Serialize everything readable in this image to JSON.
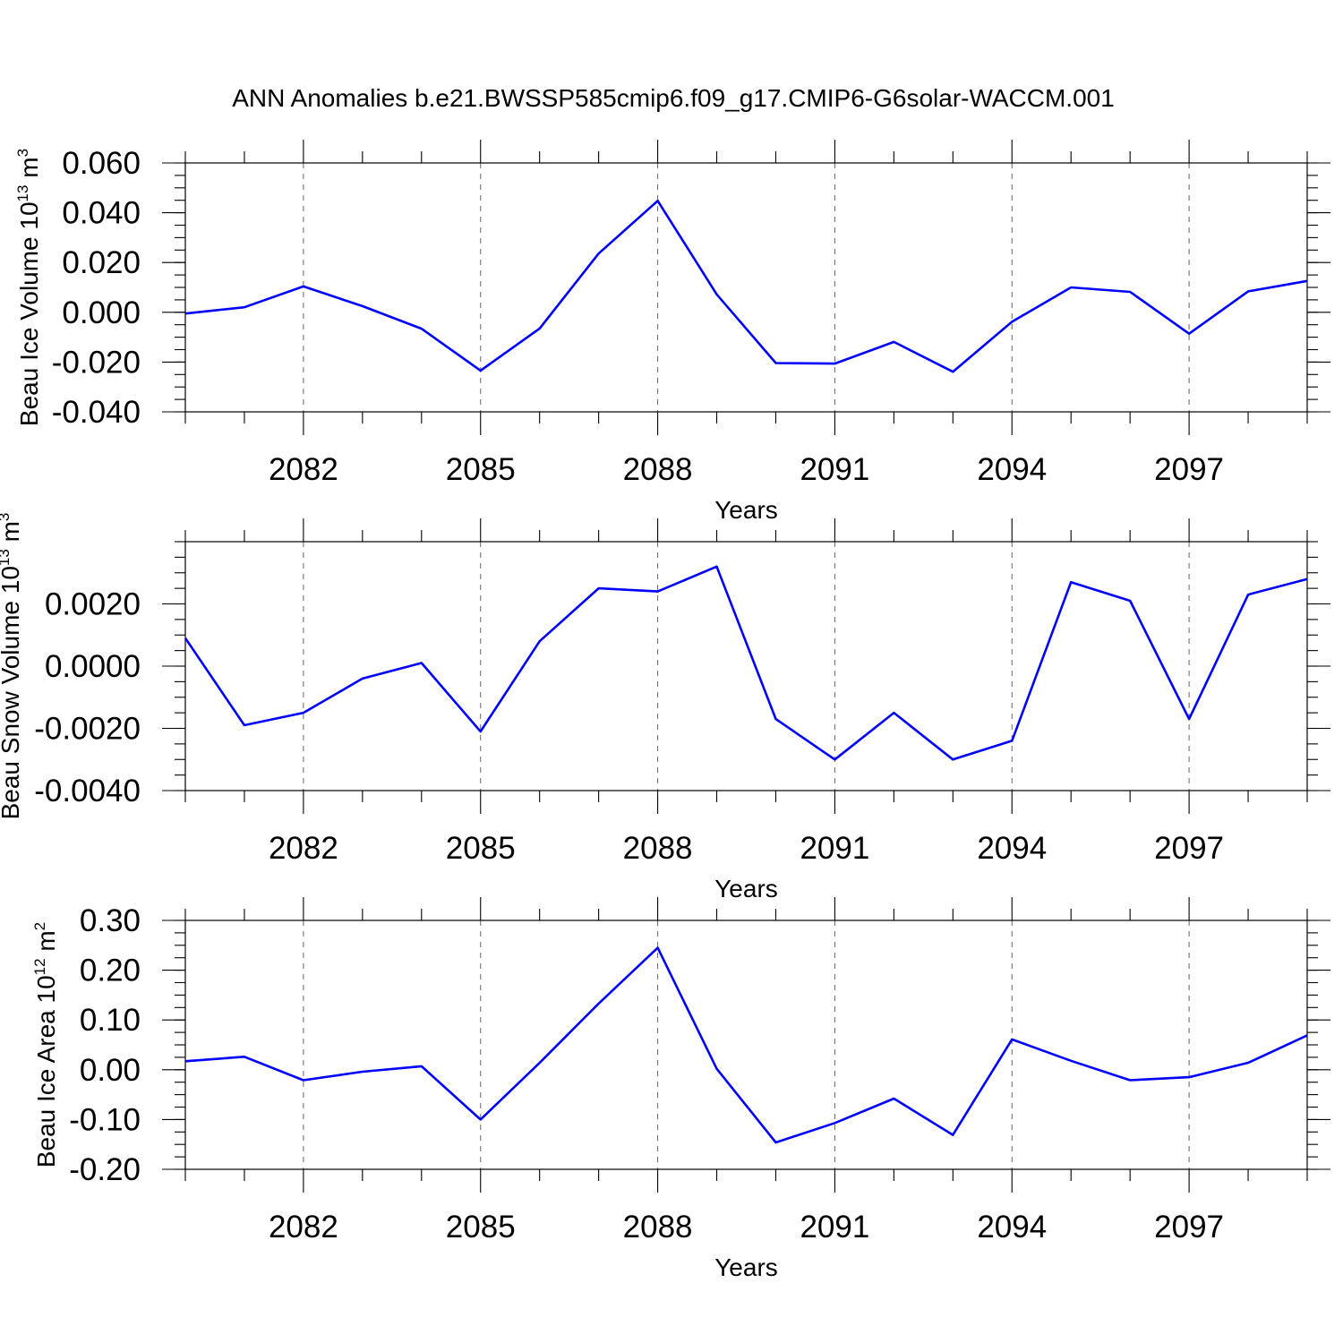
{
  "title": "ANN Anomalies b.e21.BWSSP585cmip6.f09_g17.CMIP6-G6solar-WACCM.001",
  "line_color": "#0000ff",
  "chart_data": [
    {
      "type": "line",
      "ylabel": {
        "main": "Beau Ice Volume 10",
        "sup": "13",
        "unit": " m",
        "unit_sup": "3"
      },
      "xlabel": "Years",
      "x_tick_labels": [
        "2082",
        "2085",
        "2088",
        "2091",
        "2094",
        "2097"
      ],
      "x_tick_values": [
        2082,
        2085,
        2088,
        2091,
        2094,
        2097
      ],
      "xlim": [
        2080,
        2099
      ],
      "ylim": [
        -0.04,
        0.06
      ],
      "y_tick_values": [
        -0.04,
        -0.02,
        0.0,
        0.02,
        0.04,
        0.06
      ],
      "y_tick_labels": [
        "-0.040",
        "-0.020",
        "0.000",
        "0.020",
        "0.040",
        "0.060"
      ],
      "y_minor_step": 0.005,
      "x": [
        2080,
        2081,
        2082,
        2083,
        2084,
        2085,
        2086,
        2087,
        2088,
        2089,
        2090,
        2091,
        2092,
        2093,
        2094,
        2095,
        2096,
        2097,
        2098,
        2099
      ],
      "y": [
        -0.0005,
        0.002,
        0.0104,
        0.0025,
        -0.0066,
        -0.0234,
        -0.0065,
        0.0236,
        0.0448,
        0.0072,
        -0.0204,
        -0.0206,
        -0.0119,
        -0.0239,
        -0.0038,
        0.01,
        0.0082,
        -0.0086,
        0.0084,
        0.0126
      ]
    },
    {
      "type": "line",
      "ylabel": {
        "main": "Beau Snow Volume 10",
        "sup": "13",
        "unit": " m",
        "unit_sup": "3"
      },
      "xlabel": "Years",
      "x_tick_labels": [
        "2082",
        "2085",
        "2088",
        "2091",
        "2094",
        "2097"
      ],
      "x_tick_values": [
        2082,
        2085,
        2088,
        2091,
        2094,
        2097
      ],
      "xlim": [
        2080,
        2099
      ],
      "ylim": [
        -0.004,
        0.004
      ],
      "y_tick_values": [
        -0.004,
        -0.002,
        0.0,
        0.002
      ],
      "y_tick_labels": [
        "-0.0040",
        "-0.0020",
        "0.0000",
        "0.0020"
      ],
      "y_minor_step": 0.0005,
      "x": [
        2080,
        2081,
        2082,
        2083,
        2084,
        2085,
        2086,
        2087,
        2088,
        2089,
        2090,
        2091,
        2092,
        2093,
        2094,
        2095,
        2096,
        2097,
        2098,
        2099
      ],
      "y": [
        0.0009,
        -0.0019,
        -0.0015,
        -0.0004,
        0.0001,
        -0.0021,
        0.0008,
        0.0025,
        0.0024,
        0.0032,
        -0.0017,
        -0.003,
        -0.0015,
        -0.003,
        -0.0024,
        0.0027,
        0.0021,
        -0.0017,
        0.0023,
        0.0028
      ]
    },
    {
      "type": "line",
      "ylabel": {
        "main": "Beau Ice Area 10",
        "sup": "12",
        "unit": " m",
        "unit_sup": "2"
      },
      "xlabel": "Years",
      "x_tick_labels": [
        "2082",
        "2085",
        "2088",
        "2091",
        "2094",
        "2097"
      ],
      "x_tick_values": [
        2082,
        2085,
        2088,
        2091,
        2094,
        2097
      ],
      "xlim": [
        2080,
        2099
      ],
      "ylim": [
        -0.2,
        0.3
      ],
      "y_tick_values": [
        -0.2,
        -0.1,
        0.0,
        0.1,
        0.2,
        0.3
      ],
      "y_tick_labels": [
        "-0.20",
        "-0.10",
        "0.00",
        "0.10",
        "0.20",
        "0.30"
      ],
      "y_minor_step": 0.025,
      "x": [
        2080,
        2081,
        2082,
        2083,
        2084,
        2085,
        2086,
        2087,
        2088,
        2089,
        2090,
        2091,
        2092,
        2093,
        2094,
        2095,
        2096,
        2097,
        2098,
        2099
      ],
      "y": [
        0.017,
        0.026,
        -0.021,
        -0.004,
        0.007,
        -0.1,
        0.014,
        0.133,
        0.245,
        0.002,
        -0.146,
        -0.107,
        -0.058,
        -0.131,
        0.061,
        0.018,
        -0.021,
        -0.015,
        0.014,
        0.069
      ]
    }
  ]
}
